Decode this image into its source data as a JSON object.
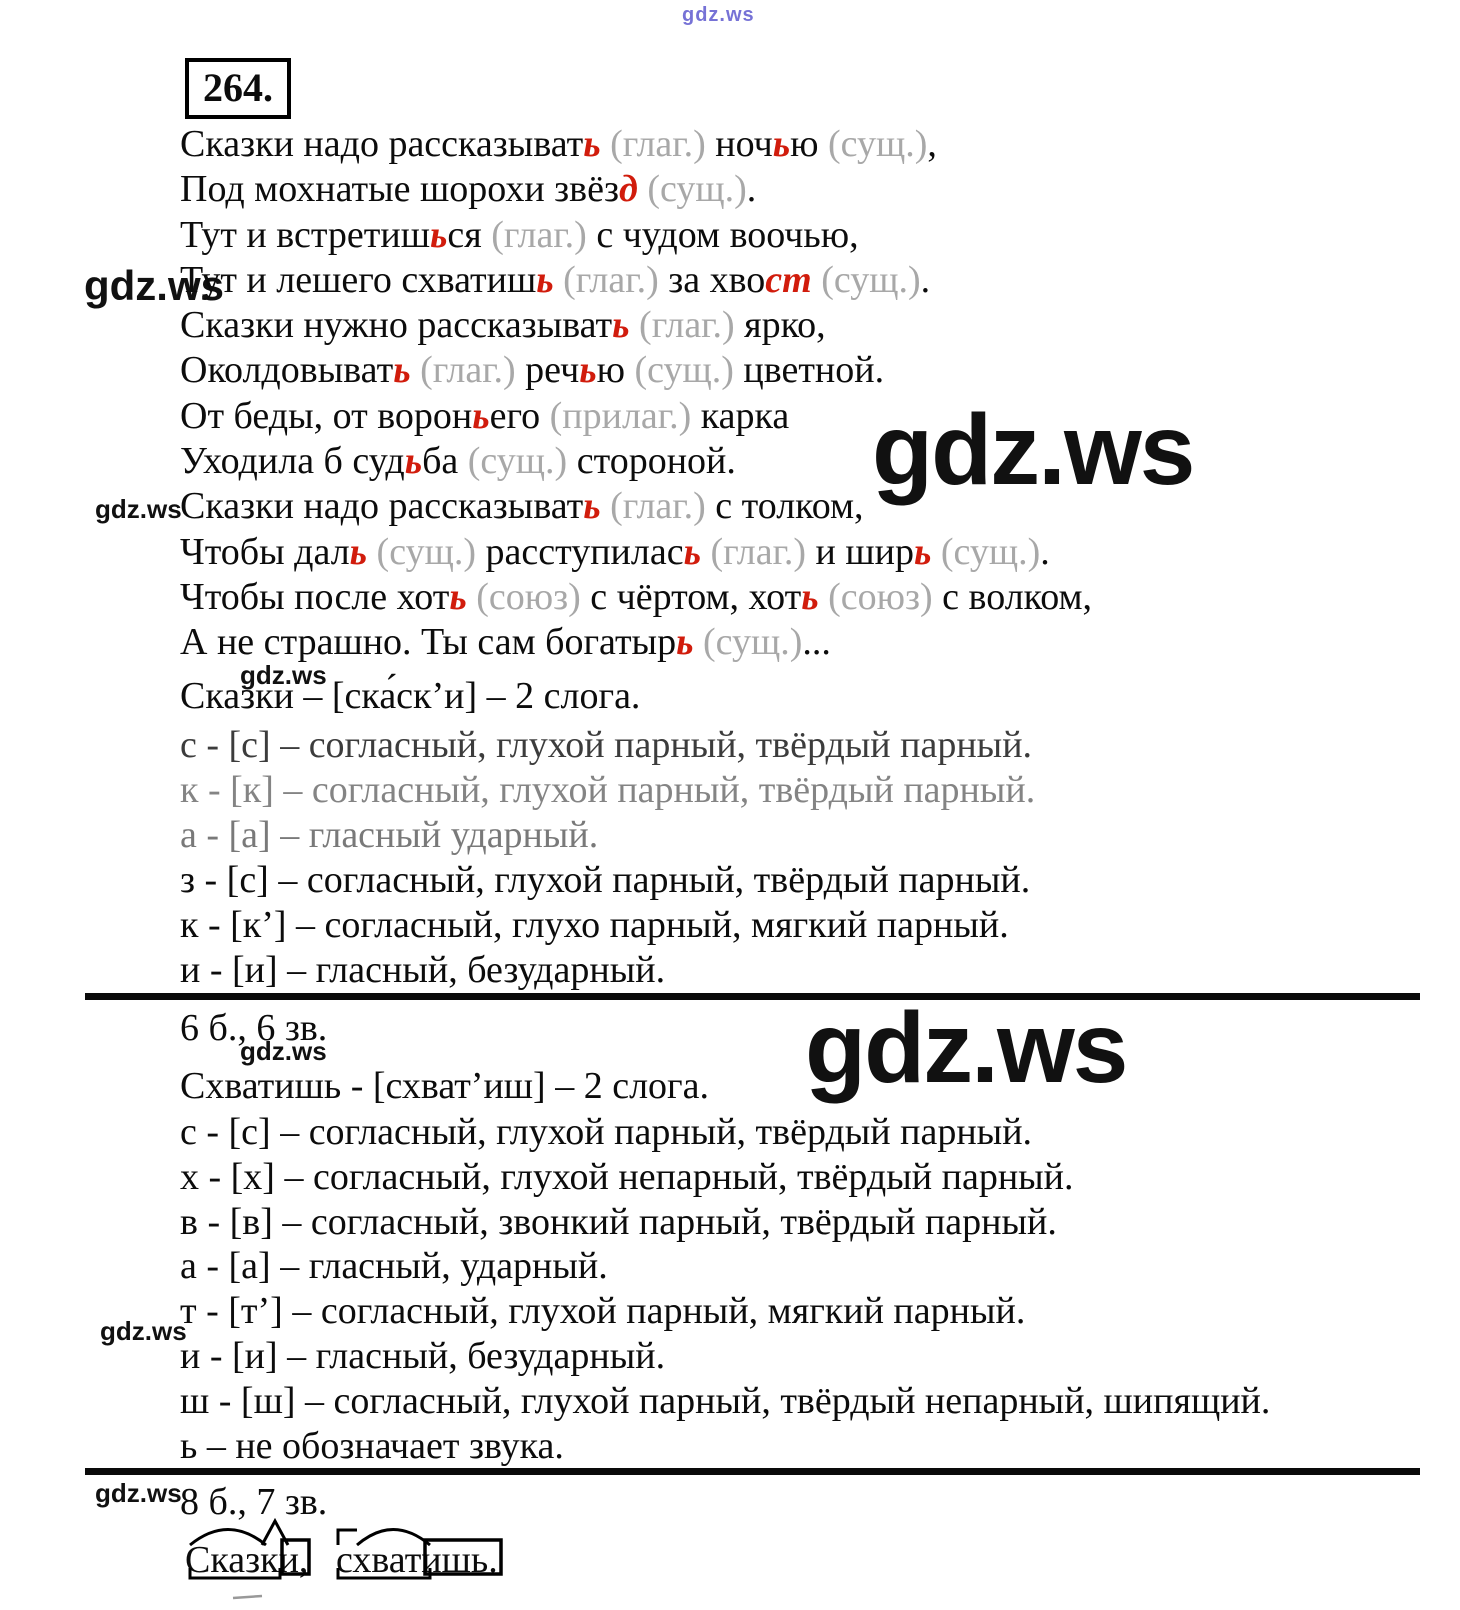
{
  "watermark": {
    "text": "gdz.ws"
  },
  "exercise": {
    "number": "264."
  },
  "poem": {
    "lines": [
      [
        {
          "t": "Сказки надо рассказыват"
        },
        {
          "t": "ь",
          "s": "r"
        },
        {
          "t": " "
        },
        {
          "t": "(глаг.)",
          "s": "g"
        },
        {
          "t": " ноч"
        },
        {
          "t": "ь",
          "s": "r"
        },
        {
          "t": "ю "
        },
        {
          "t": "(сущ.)",
          "s": "g"
        },
        {
          "t": ","
        }
      ],
      [
        {
          "t": "Под мохнатые шорохи звёз"
        },
        {
          "t": "д",
          "s": "r"
        },
        {
          "t": " "
        },
        {
          "t": "(сущ.)",
          "s": "g"
        },
        {
          "t": "."
        }
      ],
      [
        {
          "t": "Тут и встретиш"
        },
        {
          "t": "ь",
          "s": "r"
        },
        {
          "t": "ся "
        },
        {
          "t": "(глаг.)",
          "s": "g"
        },
        {
          "t": " с чудом воочью,"
        }
      ],
      [
        {
          "t": "Тут и лешего схватиш"
        },
        {
          "t": "ь",
          "s": "r"
        },
        {
          "t": " "
        },
        {
          "t": "(глаг.)",
          "s": "g"
        },
        {
          "t": " за хво"
        },
        {
          "t": "ст",
          "s": "r"
        },
        {
          "t": " "
        },
        {
          "t": "(сущ.)",
          "s": "g"
        },
        {
          "t": "."
        }
      ],
      [
        {
          "t": "Сказки нужно рассказыват"
        },
        {
          "t": "ь",
          "s": "r"
        },
        {
          "t": " "
        },
        {
          "t": "(глаг.)",
          "s": "g"
        },
        {
          "t": " ярко,"
        }
      ],
      [
        {
          "t": "Околдовыват"
        },
        {
          "t": "ь",
          "s": "r"
        },
        {
          "t": " "
        },
        {
          "t": "(глаг.)",
          "s": "g"
        },
        {
          "t": " реч"
        },
        {
          "t": "ь",
          "s": "r"
        },
        {
          "t": "ю "
        },
        {
          "t": "(сущ.)",
          "s": "g"
        },
        {
          "t": " цветной."
        }
      ],
      [
        {
          "t": "От беды, от ворон"
        },
        {
          "t": "ь",
          "s": "r"
        },
        {
          "t": "его "
        },
        {
          "t": "(прилаг.)",
          "s": "g"
        },
        {
          "t": " карка"
        }
      ],
      [
        {
          "t": "Уходила б суд"
        },
        {
          "t": "ь",
          "s": "r"
        },
        {
          "t": "ба "
        },
        {
          "t": "(сущ.)",
          "s": "g"
        },
        {
          "t": " стороной."
        }
      ],
      [
        {
          "t": "Сказки надо рассказыват"
        },
        {
          "t": "ь",
          "s": "r"
        },
        {
          "t": " "
        },
        {
          "t": "(глаг.)",
          "s": "g"
        },
        {
          "t": " с толком,"
        }
      ],
      [
        {
          "t": "Чтобы дал"
        },
        {
          "t": "ь",
          "s": "r"
        },
        {
          "t": " "
        },
        {
          "t": "(сущ.)",
          "s": "g"
        },
        {
          "t": " расступилас"
        },
        {
          "t": "ь",
          "s": "r"
        },
        {
          "t": " "
        },
        {
          "t": "(глаг.)",
          "s": "g"
        },
        {
          "t": " и шир"
        },
        {
          "t": "ь",
          "s": "r"
        },
        {
          "t": " "
        },
        {
          "t": "(сущ.)",
          "s": "g"
        },
        {
          "t": "."
        }
      ],
      [
        {
          "t": "Чтобы после хот"
        },
        {
          "t": "ь",
          "s": "r"
        },
        {
          "t": " "
        },
        {
          "t": "(союз)",
          "s": "g"
        },
        {
          "t": " с чёртом, хот"
        },
        {
          "t": "ь",
          "s": "r"
        },
        {
          "t": " "
        },
        {
          "t": "(союз)",
          "s": "g"
        },
        {
          "t": " с волком,"
        }
      ],
      [
        {
          "t": "А не страшно. Ты сам богатыр"
        },
        {
          "t": "ь",
          "s": "r"
        },
        {
          "t": " "
        },
        {
          "t": "(сущ.)",
          "s": "g"
        },
        {
          "t": "..."
        }
      ]
    ]
  },
  "analysis1": {
    "header": "Сказки – [ска́ск’и] – 2 слога.",
    "lines": [
      {
        "t": "с - [с] – согласный, глухой парный, твёрдый парный.",
        "fade": 0.8
      },
      {
        "t": "к - [к] – согласный, глухой парный, твёрдый парный.",
        "fade": 0.5
      },
      {
        "t": "а - [а] – гласный ударный.",
        "fade": 0.55
      },
      {
        "t": "з - [с] – согласный, глухой парный, твёрдый парный.",
        "fade": 1
      },
      {
        "t": "к - [к’] – согласный, глухо парный, мягкий парный.",
        "fade": 1
      },
      {
        "t": "и - [и] – гласный, безударный.",
        "fade": 1
      }
    ],
    "summary": "6 б., 6 зв."
  },
  "analysis2": {
    "header": "Схватишь - [схват’иш] – 2 слога.",
    "lines": [
      {
        "t": "с - [с] – согласный, глухой парный, твёрдый парный.",
        "fade": 1
      },
      {
        "t": "х - [х] – согласный, глухой непарный, твёрдый парный.",
        "fade": 1
      },
      {
        "t": "в - [в] – согласный, звонкий парный, твёрдый парный.",
        "fade": 1
      },
      {
        "t": "а - [а] – гласный, ударный.",
        "fade": 1
      },
      {
        "t": "т - [т’] – согласный, глухой парный, мягкий парный.",
        "fade": 1
      },
      {
        "t": "и - [и] – гласный, безударный.",
        "fade": 1
      },
      {
        "t": "ш - [ш] – согласный, глухой парный, твёрдый непарный, шипящий.",
        "fade": 1
      },
      {
        "t": "ь – не обозначает звука.",
        "fade": 1
      }
    ],
    "summary": "8 б., 7 зв."
  },
  "morphemes": {
    "word1": "Сказки,",
    "word2": "схватишь."
  },
  "colors": {
    "red": "#d11c0c",
    "gray": "#a8a8a8",
    "text": "#0c0c0c",
    "wm_blue": "#5550cc"
  }
}
